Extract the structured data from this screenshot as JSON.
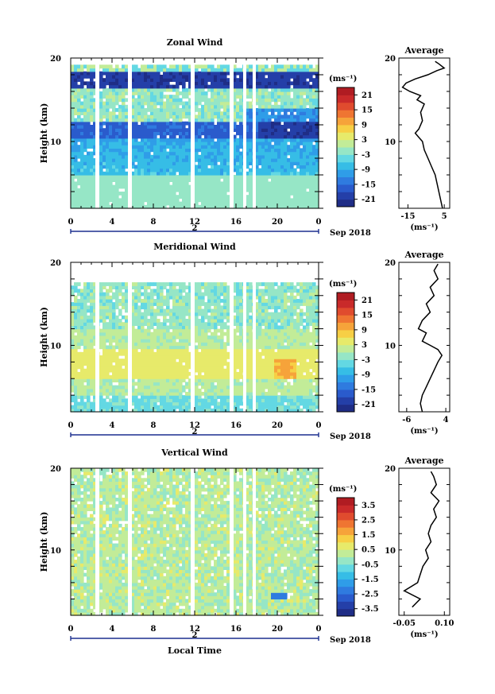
{
  "chart_data": [
    {
      "type": "heatmap",
      "title": "Zonal Wind",
      "ylabel": "Height (km)",
      "ylim": [
        2,
        20
      ],
      "y_ticks": [
        "20",
        "10"
      ],
      "x_ticks": [
        "0",
        "4",
        "8",
        "12",
        "16",
        "20",
        "0"
      ],
      "date_marker": "2",
      "date_label": "Sep 2018",
      "colorbar": {
        "unit": "(ms⁻¹)",
        "ticks": [
          "21",
          "15",
          "9",
          "3",
          "-3",
          "-9",
          "-15",
          "-21"
        ],
        "range": [
          -24,
          24
        ]
      },
      "average": {
        "title": "Average",
        "y_ticks": [
          "20",
          "10"
        ],
        "x_ticks": [
          "-15",
          "5"
        ],
        "xlim": [
          -20,
          8
        ],
        "xlabel": "(ms⁻¹)",
        "profile": [
          [
            4,
            2
          ],
          [
            3,
            3
          ],
          [
            2,
            4
          ],
          [
            1,
            5
          ],
          [
            0,
            6
          ],
          [
            -2,
            7
          ],
          [
            -4,
            8
          ],
          [
            -6,
            9
          ],
          [
            -7,
            10
          ],
          [
            -9,
            10.5
          ],
          [
            -11,
            11
          ],
          [
            -9,
            11.5
          ],
          [
            -7,
            12.5
          ],
          [
            -8,
            13.5
          ],
          [
            -6,
            14.5
          ],
          [
            -10,
            15
          ],
          [
            -8,
            15.5
          ],
          [
            -14,
            16
          ],
          [
            -18,
            16.5
          ],
          [
            -16,
            17
          ],
          [
            -11,
            17.5
          ],
          [
            -4,
            18
          ],
          [
            1,
            18.5
          ],
          [
            5,
            18.8
          ],
          [
            2,
            19.3
          ],
          [
            0,
            19.6
          ]
        ]
      }
    },
    {
      "type": "heatmap",
      "title": "Meridional Wind",
      "ylabel": "Height (km)",
      "ylim": [
        2,
        20
      ],
      "y_ticks": [
        "20",
        "10"
      ],
      "x_ticks": [
        "0",
        "4",
        "8",
        "12",
        "16",
        "20",
        "0"
      ],
      "date_marker": "2",
      "date_label": "Sep 2018",
      "colorbar": {
        "unit": "(ms⁻¹)",
        "ticks": [
          "21",
          "15",
          "9",
          "3",
          "-3",
          "-9",
          "-15",
          "-21"
        ],
        "range": [
          -24,
          24
        ]
      },
      "average": {
        "title": "Average",
        "y_ticks": [
          "20",
          "10"
        ],
        "x_ticks": [
          "-6",
          "4"
        ],
        "xlim": [
          -8,
          5
        ],
        "xlabel": "(ms⁻¹)",
        "profile": [
          [
            -2,
            2
          ],
          [
            -2.5,
            3
          ],
          [
            -2,
            4
          ],
          [
            -1,
            5
          ],
          [
            0,
            6
          ],
          [
            1,
            7
          ],
          [
            2,
            8
          ],
          [
            3,
            8.8
          ],
          [
            2,
            9.5
          ],
          [
            0,
            10
          ],
          [
            -2,
            10.5
          ],
          [
            -1,
            11.5
          ],
          [
            -3,
            12
          ],
          [
            -2,
            13
          ],
          [
            0,
            14
          ],
          [
            -1,
            15
          ],
          [
            1,
            16
          ],
          [
            0,
            17
          ],
          [
            2,
            18
          ],
          [
            1,
            19
          ],
          [
            2,
            19.8
          ]
        ]
      }
    },
    {
      "type": "heatmap",
      "title": "Vertical Wind",
      "ylabel": "Height (km)",
      "ylim": [
        2,
        20
      ],
      "y_ticks": [
        "20",
        "10"
      ],
      "x_ticks": [
        "0",
        "4",
        "8",
        "12",
        "16",
        "20",
        "0"
      ],
      "date_marker": "2",
      "date_label": "Sep 2018",
      "xlabel": "Local Time",
      "colorbar": {
        "unit": "(ms⁻¹)",
        "ticks": [
          "3.5",
          "2.5",
          "1.5",
          "0.5",
          "-0.5",
          "-1.5",
          "-2.5",
          "-3.5"
        ],
        "range": [
          -4,
          4
        ]
      },
      "average": {
        "title": "Average",
        "y_ticks": [
          "20",
          "10"
        ],
        "x_ticks": [
          "-0.05",
          "0.10"
        ],
        "xlim": [
          -0.07,
          0.12
        ],
        "xlabel": "(ms⁻¹)",
        "profile": [
          [
            -0.02,
            3
          ],
          [
            0.01,
            4
          ],
          [
            -0.05,
            5
          ],
          [
            0.0,
            6
          ],
          [
            0.01,
            7
          ],
          [
            0.02,
            8
          ],
          [
            0.04,
            9
          ],
          [
            0.03,
            10
          ],
          [
            0.05,
            11
          ],
          [
            0.04,
            12
          ],
          [
            0.05,
            13
          ],
          [
            0.07,
            14
          ],
          [
            0.06,
            15
          ],
          [
            0.08,
            16
          ],
          [
            0.05,
            17
          ],
          [
            0.07,
            18
          ],
          [
            0.06,
            19
          ],
          [
            0.05,
            19.6
          ]
        ]
      }
    }
  ]
}
